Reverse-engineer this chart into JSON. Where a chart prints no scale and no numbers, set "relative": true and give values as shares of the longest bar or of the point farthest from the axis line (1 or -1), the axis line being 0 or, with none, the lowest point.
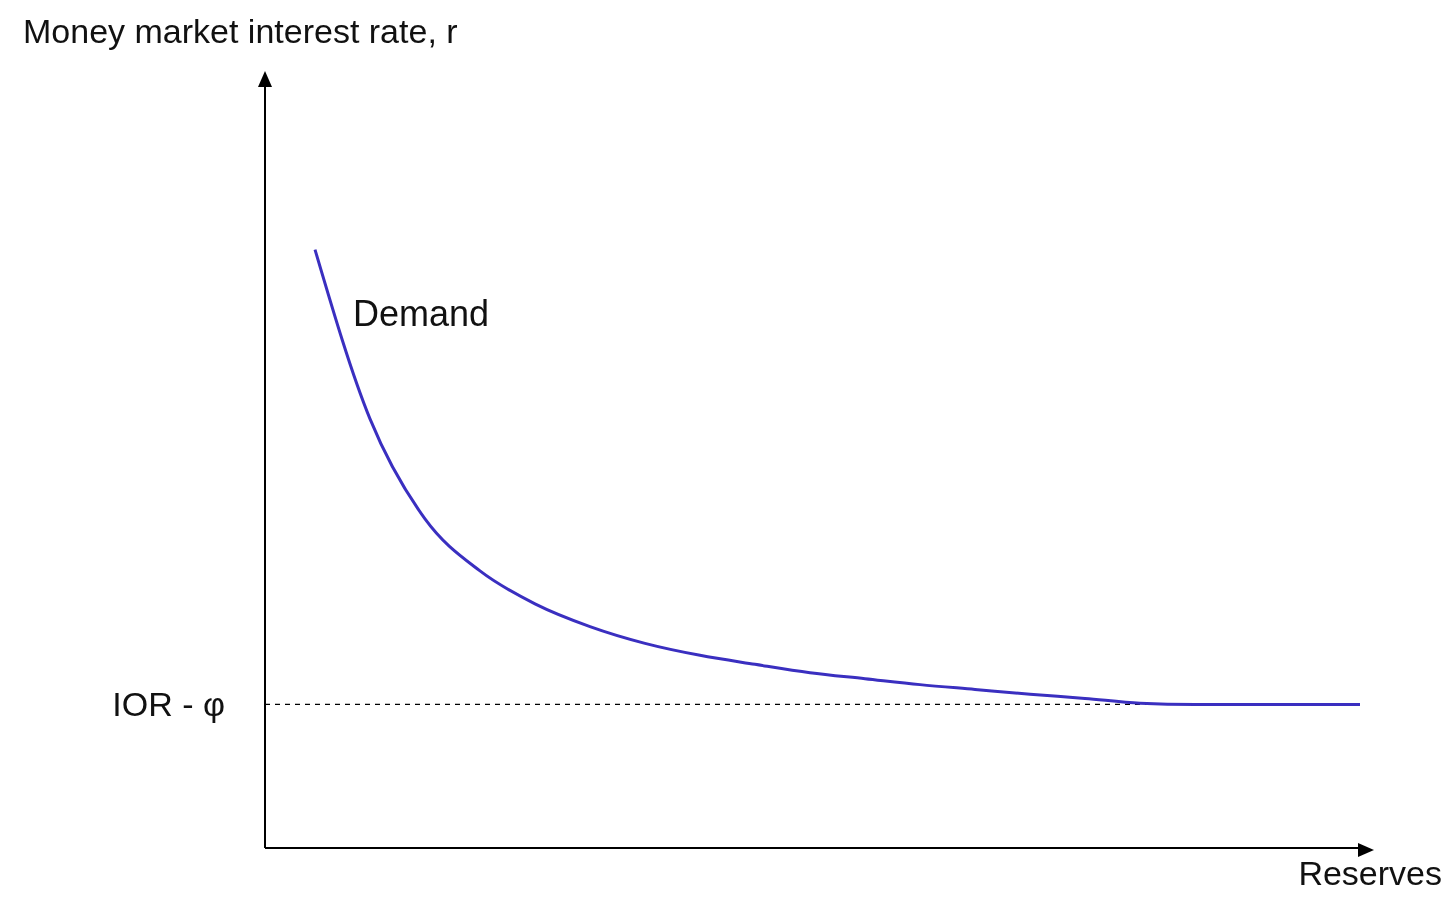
{
  "chart_data": {
    "type": "line",
    "relative": true,
    "xlabel": "Reserves",
    "categories": [
      null,
      null,
      null,
      null,
      null,
      null,
      null,
      null,
      null,
      null,
      null,
      null,
      null,
      null,
      null,
      null,
      null,
      null,
      null,
      null
    ],
    "annotations": [
      "Money market interest rate, r",
      "Demand"
    ],
    "series": [
      {
        "color": "#3a2fc0",
        "values": [
          1,
          0.717,
          0.55,
          0.463,
          0.408,
          0.37,
          0.342,
          0.322,
          0.307,
          0.293,
          0.283,
          0.273,
          0.265,
          0.257,
          0.25,
          0.242,
          0.24,
          0.24,
          0.24,
          0.24
        ]
      }
    ],
    "ref_lines": [
      {
        "axis": "y",
        "value": 0.24,
        "label": "IOR - φ",
        "color": "#000000",
        "line_style": "dashed"
      }
    ],
    "grid": false,
    "legend": false,
    "marker": "none",
    "line_style": "solid"
  }
}
